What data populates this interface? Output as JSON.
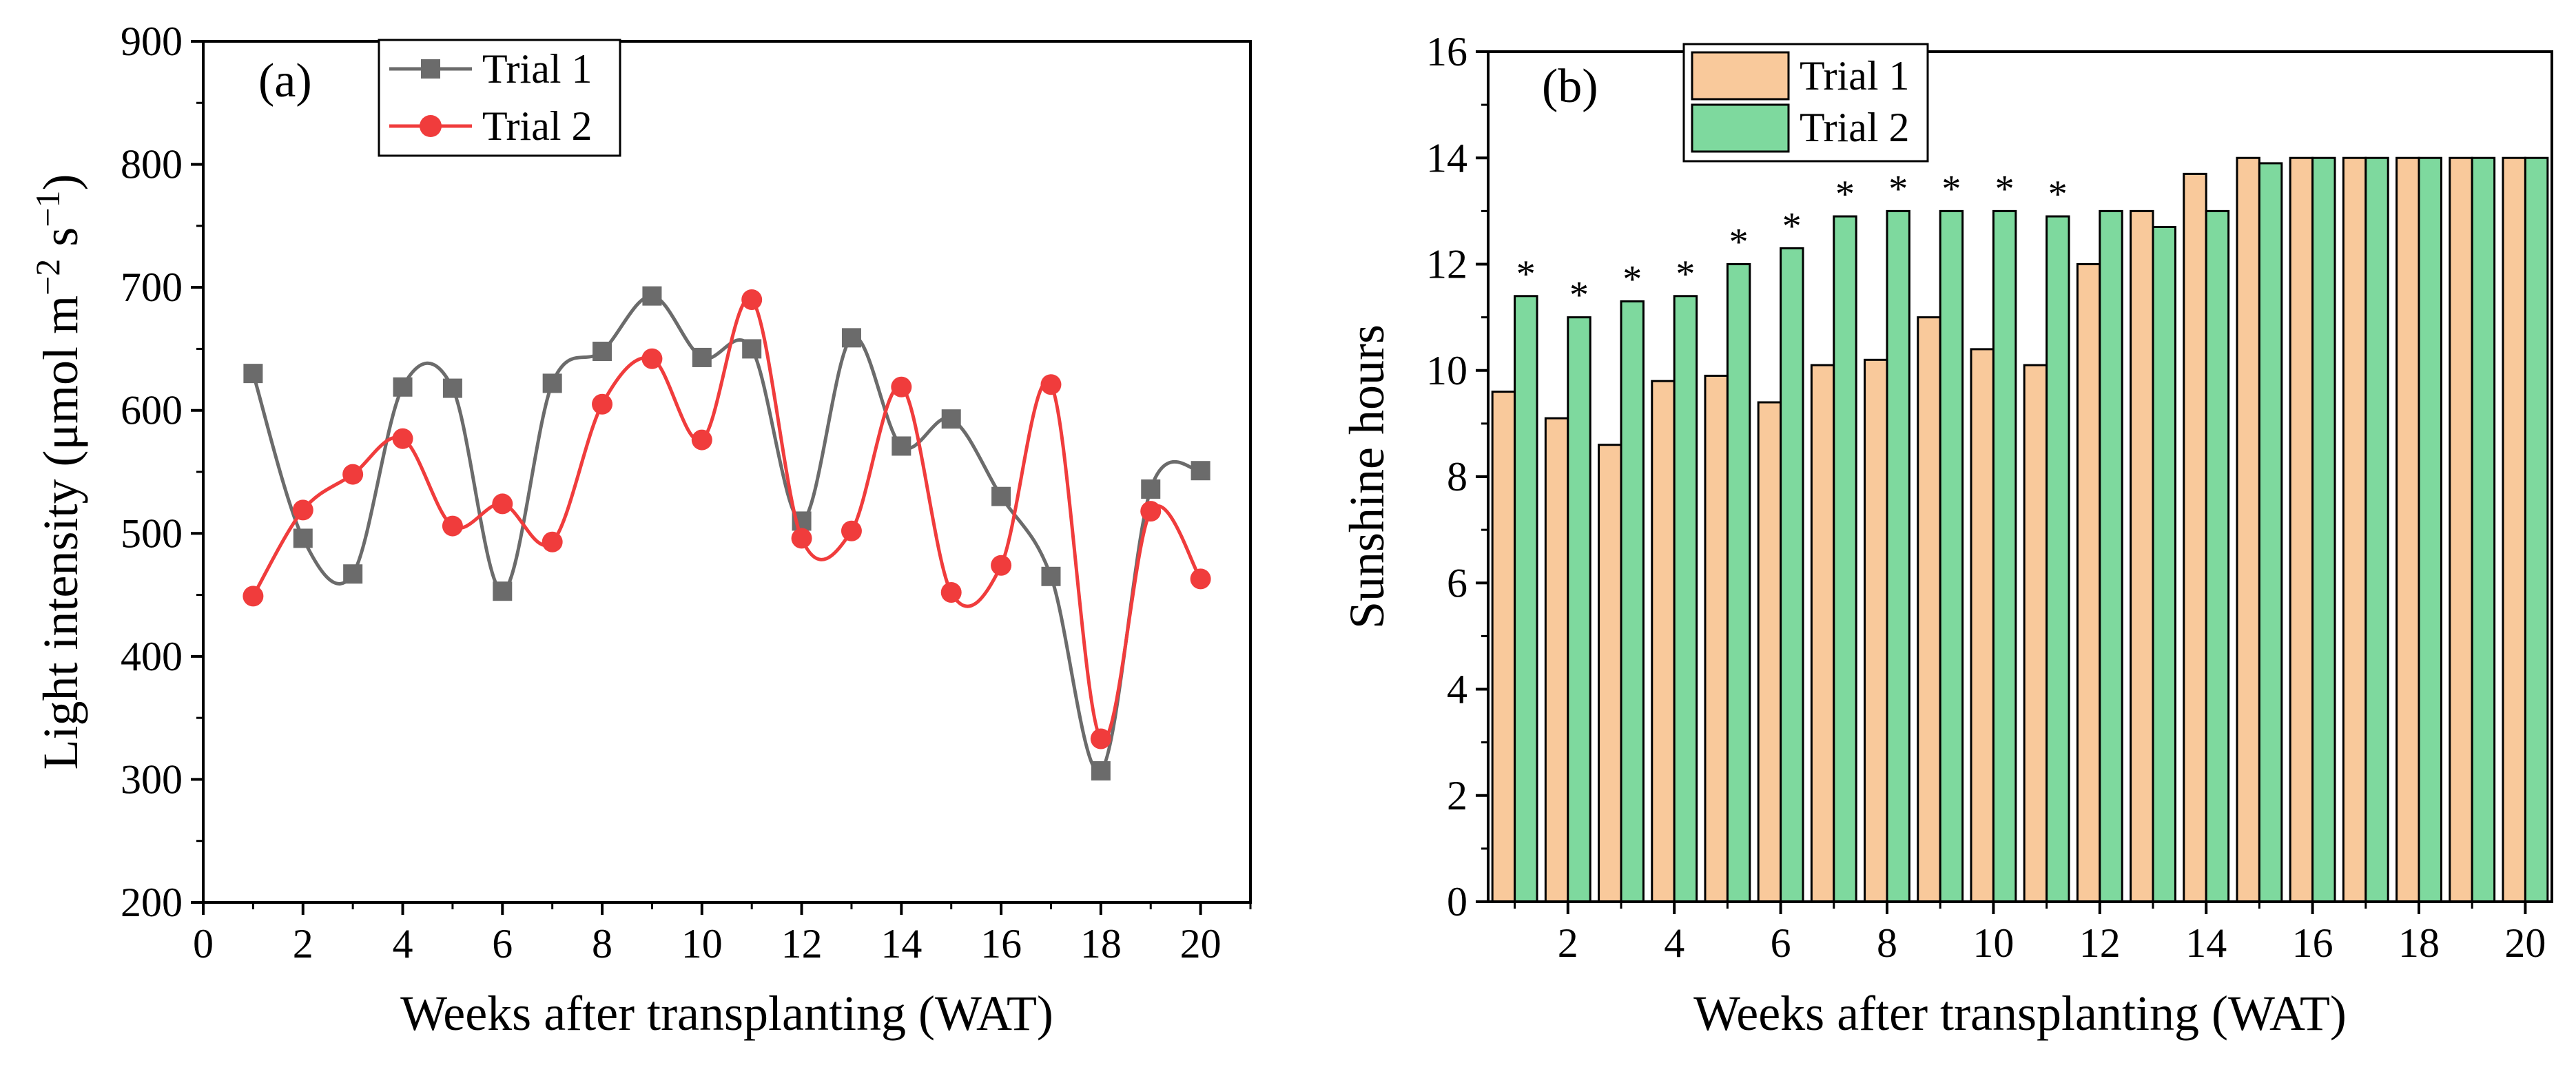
{
  "chart_data": [
    {
      "type": "line",
      "panel_label": "(a)",
      "title": "",
      "xlabel": "Weeks after transplanting (WAT)",
      "ylabel_main": "Light intensity (μmol m",
      "ylabel_sup1": "−2",
      "ylabel_mid": " s",
      "ylabel_sup2": "−1",
      "ylabel_end": ")",
      "xlim": [
        0,
        21
      ],
      "ylim": [
        200,
        900
      ],
      "xticks": [
        "0",
        "2",
        "4",
        "6",
        "8",
        "10",
        "12",
        "14",
        "16",
        "18",
        "20"
      ],
      "yticks": [
        "200",
        "300",
        "400",
        "500",
        "600",
        "700",
        "800",
        "900"
      ],
      "legend_position": "top-left",
      "x": [
        1,
        2,
        3,
        4,
        5,
        6,
        7,
        8,
        9,
        10,
        11,
        12,
        13,
        14,
        15,
        16,
        17,
        18,
        19,
        20
      ],
      "series": [
        {
          "name": "Trial 1",
          "color": "#6b6b6b",
          "marker": "square",
          "values": [
            630,
            496,
            467,
            619,
            618,
            453,
            622,
            648,
            693,
            643,
            650,
            510,
            659,
            571,
            593,
            530,
            465,
            307,
            536,
            551
          ]
        },
        {
          "name": "Trial 2",
          "color": "#f03c3c",
          "marker": "circle",
          "values": [
            449,
            519,
            548,
            577,
            506,
            524,
            493,
            605,
            642,
            576,
            690,
            496,
            502,
            619,
            452,
            474,
            621,
            333,
            518,
            463
          ]
        }
      ]
    },
    {
      "type": "bar",
      "panel_label": "(b)",
      "title": "",
      "xlabel": "Weeks after transplanting (WAT)",
      "ylabel": "Sunshine hours",
      "ylim": [
        0,
        16
      ],
      "xticks": [
        "2",
        "4",
        "6",
        "8",
        "10",
        "12",
        "14",
        "16",
        "18",
        "20"
      ],
      "yticks": [
        "0",
        "2",
        "4",
        "6",
        "8",
        "10",
        "12",
        "14",
        "16"
      ],
      "legend_position": "top-left",
      "categories": [
        1,
        2,
        3,
        4,
        5,
        6,
        7,
        8,
        9,
        10,
        11,
        12,
        13,
        14,
        15,
        16,
        17,
        18,
        19,
        20
      ],
      "series": [
        {
          "name": "Trial 1",
          "color": "#f9c99b",
          "values": [
            9.6,
            9.1,
            8.6,
            9.8,
            9.9,
            9.4,
            10.1,
            10.2,
            11.0,
            10.4,
            10.1,
            12.0,
            13.0,
            13.7,
            14.0,
            14.0,
            14.0,
            14.0,
            14.0,
            14.0
          ]
        },
        {
          "name": "Trial 2",
          "color": "#7ed99e",
          "values": [
            11.4,
            11.0,
            11.3,
            11.4,
            12.0,
            12.3,
            12.9,
            13.0,
            13.0,
            13.0,
            12.9,
            13.0,
            12.7,
            13.0,
            13.9,
            14.0,
            14.0,
            14.0,
            14.0,
            14.0
          ]
        }
      ],
      "annotations": [
        "*",
        "*",
        "*",
        "*",
        "*",
        "*",
        "*",
        "*",
        "*",
        "*",
        "*"
      ],
      "annotation_weeks": [
        1,
        2,
        3,
        4,
        5,
        6,
        7,
        8,
        9,
        10,
        11
      ]
    }
  ]
}
